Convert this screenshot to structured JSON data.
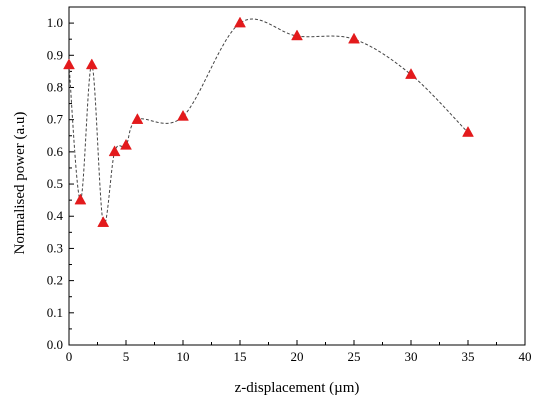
{
  "chart_data": {
    "type": "line",
    "title": "",
    "xlabel": "z-displacement (µm)",
    "ylabel": "Normalised power (a.u)",
    "xlim": [
      0,
      40
    ],
    "ylim": [
      0.0,
      1.05
    ],
    "xticks": [
      "0",
      "5",
      "10",
      "15",
      "20",
      "25",
      "30",
      "35",
      "40"
    ],
    "yticks": [
      "0.0",
      "0.1",
      "0.2",
      "0.3",
      "0.4",
      "0.5",
      "0.6",
      "0.7",
      "0.8",
      "0.9",
      "1.0"
    ],
    "grid": false,
    "series": [
      {
        "x": [
          0,
          1,
          2,
          3,
          4,
          5,
          6,
          10,
          15,
          20,
          25,
          30,
          35
        ],
        "y": [
          0.87,
          0.45,
          0.87,
          0.38,
          0.6,
          0.62,
          0.7,
          0.71,
          1.0,
          0.96,
          0.95,
          0.84,
          0.66
        ],
        "marker": "triangle",
        "line_style": "dashed-spline",
        "marker_color": "#e31a1c",
        "line_color": "#444444"
      }
    ]
  }
}
